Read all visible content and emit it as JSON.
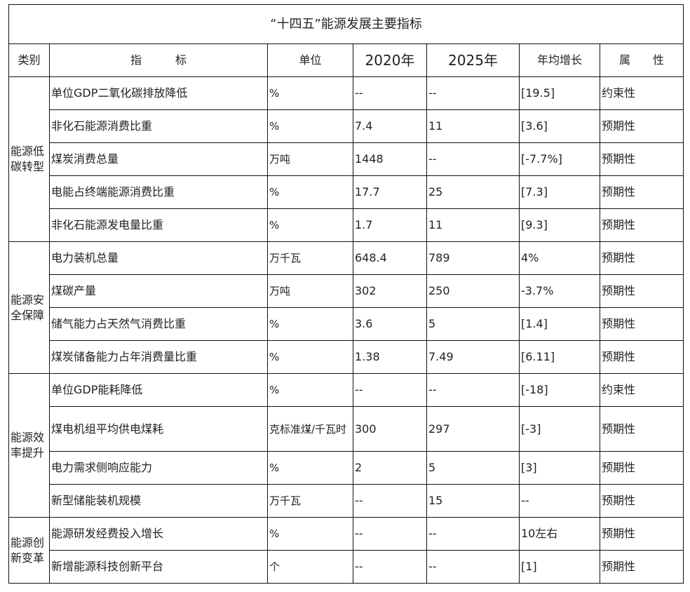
{
  "title": "“十四五”能源发展主要指标",
  "headers": [
    "类别",
    "指　　　标",
    "单位",
    "2020年",
    "2025年",
    "年均增长",
    "属　　性"
  ],
  "groups": [
    {
      "category": "能源低碳转型",
      "rows": [
        {
          "indicator": "单位GDP二氧化碳排放降低",
          "unit": "%",
          "y2020": "--",
          "y2025": "--",
          "growth": "[19.5]",
          "attribute": "约束性"
        },
        {
          "indicator": "非化石能源消费比重",
          "unit": "%",
          "y2020": "7.4",
          "y2025": "11",
          "growth": "[3.6]",
          "attribute": "预期性"
        },
        {
          "indicator": "煤炭消费总量",
          "unit": "万吨",
          "y2020": "1448",
          "y2025": "--",
          "growth": "[-7.7%]",
          "attribute": "预期性"
        },
        {
          "indicator": "电能占终端能源消费比重",
          "unit": "%",
          "y2020": "17.7",
          "y2025": "25",
          "growth": "[7.3]",
          "attribute": "预期性"
        },
        {
          "indicator": "非化石能源发电量比重",
          "unit": "%",
          "y2020": "1.7",
          "y2025": "11",
          "growth": "[9.3]",
          "attribute": "预期性"
        }
      ]
    },
    {
      "category": "能源安全保障",
      "rows": [
        {
          "indicator": "电力装机总量",
          "unit": "万千瓦",
          "y2020": "648.4",
          "y2025": "789",
          "growth": "4%",
          "attribute": "预期性"
        },
        {
          "indicator": "煤碳产量",
          "unit": "万吨",
          "y2020": "302",
          "y2025": "250",
          "growth": "-3.7%",
          "attribute": "预期性"
        },
        {
          "indicator": "储气能力占天然气消费比重",
          "unit": "%",
          "y2020": "3.6",
          "y2025": "5",
          "growth": "[1.4]",
          "attribute": "预期性"
        },
        {
          "indicator": "煤炭储备能力占年消费量比重",
          "unit": "%",
          "y2020": "1.38",
          "y2025": "7.49",
          "growth": "[6.11]",
          "attribute": "预期性"
        }
      ]
    },
    {
      "category": "能源效率提升",
      "rows": [
        {
          "indicator": "单位GDP能耗降低",
          "unit": "%",
          "y2020": "--",
          "y2025": "--",
          "growth": "[-18]",
          "attribute": "约束性"
        },
        {
          "indicator": "煤电机组平均供电煤耗",
          "unit": "克标准煤/千瓦时",
          "y2020": "300",
          "y2025": "297",
          "growth": "[-3]",
          "attribute": "预期性"
        },
        {
          "indicator": "电力需求侧响应能力",
          "unit": "%",
          "y2020": "2",
          "y2025": "5",
          "growth": "[3]",
          "attribute": "预期性"
        },
        {
          "indicator": "新型储能装机规模",
          "unit": "万千瓦",
          "y2020": "--",
          "y2025": "15",
          "growth": "--",
          "attribute": "预期性"
        }
      ]
    },
    {
      "category": "能源创新变革",
      "rows": [
        {
          "indicator": "能源研发经费投入增长",
          "unit": "%",
          "y2020": "--",
          "y2025": "--",
          "growth": "10左右",
          "attribute": "预期性"
        },
        {
          "indicator": "新增能源科技创新平台",
          "unit": "个",
          "y2020": "--",
          "y2025": "--",
          "growth": "[1]",
          "attribute": "预期性"
        }
      ]
    }
  ]
}
